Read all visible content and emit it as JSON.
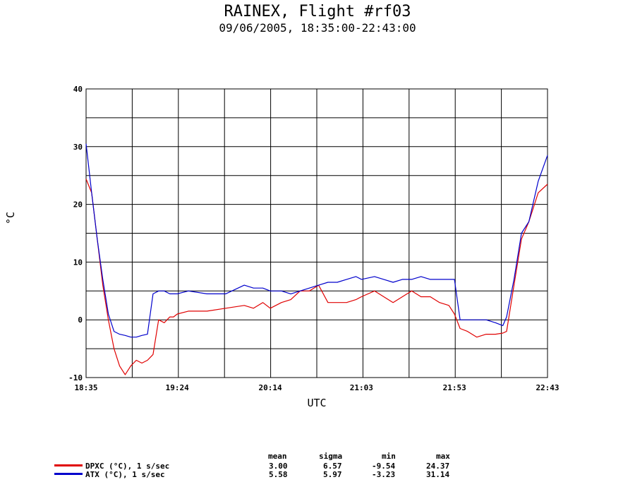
{
  "header": {
    "title": "RAINEX, Flight #rf03",
    "subtitle": "09/06/2005, 18:35:00-22:43:00"
  },
  "chart_data": {
    "type": "line",
    "xlabel": "UTC",
    "ylabel": "°C",
    "x_ticks": [
      "18:35",
      "19:24",
      "20:14",
      "21:03",
      "21:53",
      "22:43"
    ],
    "xlim": [
      "18:35",
      "22:43"
    ],
    "ylim": [
      -10,
      40
    ],
    "y_ticks": [
      -10,
      0,
      10,
      20,
      30,
      40
    ],
    "grid": true,
    "series": [
      {
        "name": "DPXC (°C), 1 s/sec",
        "color": "#e00000",
        "x": [
          "18:35",
          "18:38",
          "18:41",
          "18:44",
          "18:47",
          "18:50",
          "18:53",
          "18:56",
          "18:59",
          "19:02",
          "19:05",
          "19:08",
          "19:11",
          "19:14",
          "19:17",
          "19:20",
          "19:22",
          "19:24",
          "19:30",
          "19:40",
          "19:50",
          "20:00",
          "20:05",
          "20:10",
          "20:14",
          "20:20",
          "20:25",
          "20:30",
          "20:35",
          "20:40",
          "20:45",
          "20:50",
          "20:55",
          "21:00",
          "21:03",
          "21:10",
          "21:15",
          "21:20",
          "21:25",
          "21:30",
          "21:35",
          "21:40",
          "21:45",
          "21:50",
          "21:53",
          "21:56",
          "22:00",
          "22:05",
          "22:10",
          "22:15",
          "22:19",
          "22:21",
          "22:25",
          "22:29",
          "22:33",
          "22:38",
          "22:43"
        ],
        "values": [
          24.4,
          22,
          14,
          6,
          0,
          -5,
          -8,
          -9.5,
          -8,
          -7,
          -7.5,
          -7,
          -6,
          0,
          -0.5,
          0.5,
          0.5,
          1,
          1.5,
          1.5,
          2,
          2.5,
          2,
          3,
          2,
          3,
          3.5,
          5,
          5,
          6,
          3,
          3,
          3,
          3.5,
          4,
          5,
          4,
          3,
          4,
          5,
          4,
          4,
          3,
          2.5,
          1,
          -1.5,
          -2,
          -3,
          -2.5,
          -2.5,
          -2.3,
          -2,
          6,
          14,
          17,
          22,
          23.5
        ]
      },
      {
        "name": "ATX (°C), 1 s/sec",
        "color": "#0000cc",
        "x": [
          "18:35",
          "18:38",
          "18:41",
          "18:44",
          "18:47",
          "18:50",
          "18:53",
          "18:56",
          "18:59",
          "19:02",
          "19:05",
          "19:08",
          "19:11",
          "19:14",
          "19:17",
          "19:20",
          "19:24",
          "19:30",
          "19:40",
          "19:50",
          "20:00",
          "20:05",
          "20:10",
          "20:14",
          "20:20",
          "20:25",
          "20:30",
          "20:35",
          "20:40",
          "20:45",
          "20:50",
          "20:55",
          "21:00",
          "21:03",
          "21:10",
          "21:15",
          "21:20",
          "21:25",
          "21:30",
          "21:35",
          "21:40",
          "21:45",
          "21:50",
          "21:53",
          "21:56",
          "22:00",
          "22:05",
          "22:10",
          "22:15",
          "22:19",
          "22:21",
          "22:25",
          "22:29",
          "22:33",
          "22:38",
          "22:43"
        ],
        "values": [
          30.5,
          22,
          14,
          7,
          1,
          -2,
          -2.5,
          -2.7,
          -3,
          -3,
          -2.7,
          -2.5,
          4.5,
          5,
          5,
          4.5,
          4.5,
          5,
          4.5,
          4.5,
          6,
          5.5,
          5.5,
          5,
          5,
          4.5,
          5,
          5.5,
          6,
          6.5,
          6.5,
          7,
          7.5,
          7,
          7.5,
          7,
          6.5,
          7,
          7,
          7.5,
          7,
          7,
          7,
          7,
          0,
          0,
          0,
          0,
          -0.5,
          -1,
          0.5,
          7,
          15,
          17,
          24,
          28.5
        ]
      }
    ]
  },
  "stats": {
    "headers": [
      "mean",
      "sigma",
      "min",
      "max"
    ],
    "rows": [
      {
        "label": "DPXC (°C), 1 s/sec",
        "mean": "3.00",
        "sigma": "6.57",
        "min": "-9.54",
        "max": "24.37"
      },
      {
        "label": "ATX (°C), 1 s/sec",
        "mean": "5.58",
        "sigma": "5.97",
        "min": "-3.23",
        "max": "31.14"
      }
    ]
  }
}
